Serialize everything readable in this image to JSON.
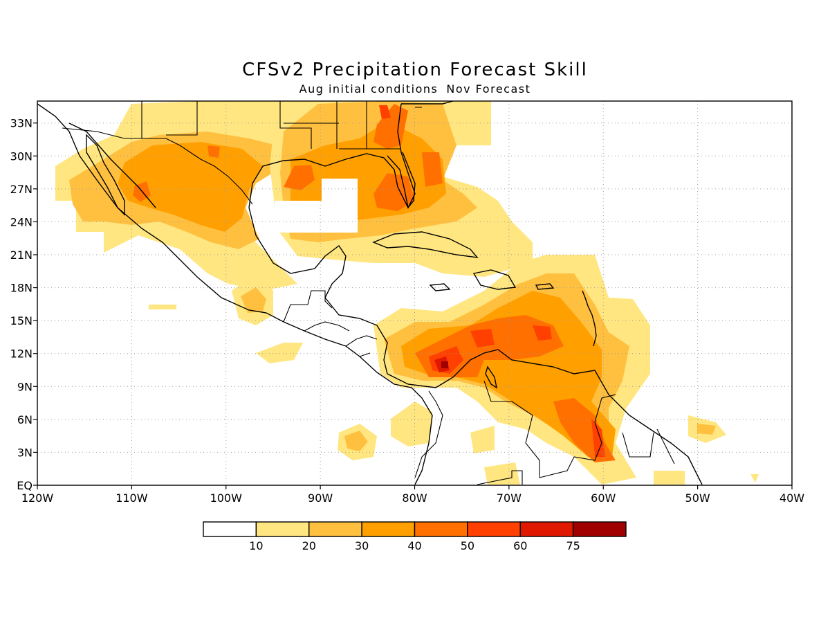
{
  "title": "CFSv2 Precipitation Forecast Skill",
  "subtitle": {
    "left": "Aug initial conditions",
    "right": "Nov Forecast"
  },
  "axes": {
    "lat_ticks": [
      "33N",
      "30N",
      "27N",
      "24N",
      "21N",
      "18N",
      "15N",
      "12N",
      "9N",
      "6N",
      "3N",
      "EQ"
    ],
    "lon_ticks": [
      "120W",
      "110W",
      "100W",
      "90W",
      "80W",
      "70W",
      "60W",
      "50W",
      "40W"
    ],
    "lat_values": [
      33,
      30,
      27,
      24,
      21,
      18,
      15,
      12,
      9,
      6,
      3,
      0
    ],
    "lon_values": [
      -120,
      -110,
      -100,
      -90,
      -80,
      -70,
      -60,
      -50,
      -40
    ],
    "lon_range": [
      -120,
      -40
    ],
    "lat_range": [
      0,
      35
    ],
    "grid": "dotted"
  },
  "legend": {
    "labels": [
      "10",
      "20",
      "30",
      "40",
      "50",
      "60",
      "75"
    ],
    "colors": [
      "#ffffff",
      "#ffe680",
      "#ffc040",
      "#ffa000",
      "#ff7000",
      "#ff4000",
      "#e01800",
      "#a00000"
    ]
  },
  "colors": {
    "c1": "#ffe680",
    "c2": "#ffc040",
    "c3": "#ffa000",
    "c4": "#ff7000",
    "c5": "#ff4000",
    "c6": "#e01800",
    "c7": "#a00000"
  }
}
